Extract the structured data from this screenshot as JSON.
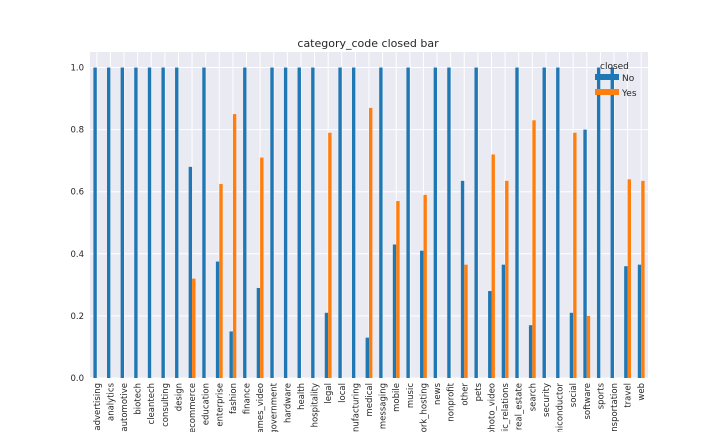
{
  "chart_data": {
    "type": "bar",
    "title": "category_code closed bar",
    "xlabel": "",
    "ylabel": "",
    "ylim": [
      0,
      1.05
    ],
    "yticks": [
      0.0,
      0.2,
      0.4,
      0.6,
      0.8,
      1.0
    ],
    "ytick_labels": [
      "0.0",
      "0.2",
      "0.4",
      "0.6",
      "0.8",
      "1.0"
    ],
    "grid": true,
    "legend": {
      "title": "closed",
      "placement": "top-right"
    },
    "categories": [
      "advertising",
      "analytics",
      "automotive",
      "biotech",
      "cleantech",
      "consulting",
      "design",
      "ecommerce",
      "education",
      "enterprise",
      "fashion",
      "finance",
      "games_video",
      "government",
      "hardware",
      "health",
      "hospitality",
      "legal",
      "local",
      "manufacturing",
      "medical",
      "messaging",
      "mobile",
      "music",
      "network_hosting",
      "news",
      "nonprofit",
      "other",
      "pets",
      "photo_video",
      "public_relations",
      "real_estate",
      "search",
      "security",
      "semiconductor",
      "social",
      "software",
      "sports",
      "transportation",
      "travel",
      "web"
    ],
    "series": [
      {
        "name": "No",
        "color": "#1f77b4",
        "values": [
          1.0,
          1.0,
          1.0,
          1.0,
          1.0,
          1.0,
          1.0,
          0.68,
          1.0,
          0.375,
          0.15,
          1.0,
          0.29,
          1.0,
          1.0,
          1.0,
          1.0,
          0.21,
          1.0,
          1.0,
          0.13,
          1.0,
          0.43,
          1.0,
          0.41,
          1.0,
          1.0,
          0.635,
          1.0,
          0.28,
          0.365,
          1.0,
          0.17,
          1.0,
          1.0,
          0.21,
          0.8,
          1.0,
          1.0,
          0.36,
          0.365
        ]
      },
      {
        "name": "Yes",
        "color": "#ff7f0e",
        "values": [
          0,
          0,
          0,
          0,
          0,
          0,
          0,
          0.32,
          0,
          0.625,
          0.85,
          0,
          0.71,
          0,
          0,
          0,
          0,
          0.79,
          0,
          0,
          0.87,
          0,
          0.57,
          0,
          0.59,
          0,
          0,
          0.365,
          0,
          0.72,
          0.635,
          0,
          0.83,
          0,
          0,
          0.79,
          0.2,
          0,
          0,
          0.64,
          0.635
        ]
      }
    ]
  }
}
